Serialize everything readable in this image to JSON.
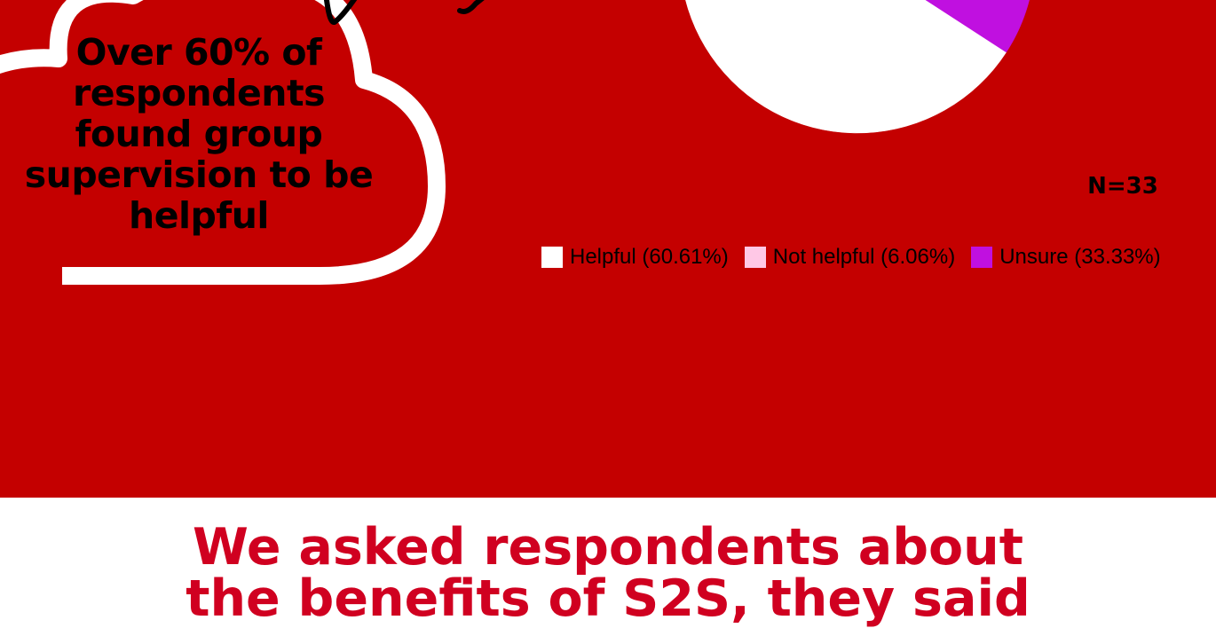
{
  "colors": {
    "panel_bg": "#c40000",
    "cloud_outline": "#ffffff",
    "heading_red": "#d00020",
    "helpful": "#ffffff",
    "not_helpful": "#ffc8e6",
    "unsure": "#c010e0"
  },
  "callout": {
    "text": "Over 60% of respondents found group supervision to be helpful"
  },
  "chart_data": {
    "type": "pie",
    "annotation": "N=33",
    "slices": [
      {
        "label": "Helpful (60.61%)",
        "value": 60.61,
        "color": "#ffffff"
      },
      {
        "label": "Not helpful (6.06%)",
        "value": 6.06,
        "color": "#ffc8e6"
      },
      {
        "label": "Unsure (33.33%)",
        "value": 33.33,
        "color": "#c010e0"
      }
    ],
    "legend_position": "bottom"
  },
  "heading": {
    "line1": "We asked respondents about",
    "line2": "the benefits of S2S, they said"
  }
}
